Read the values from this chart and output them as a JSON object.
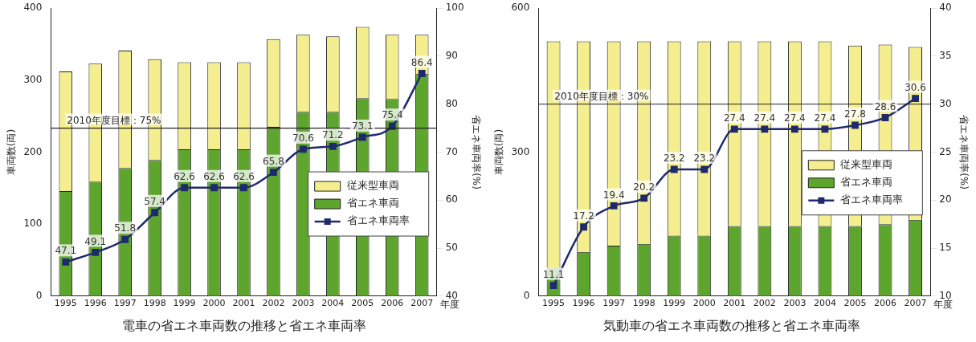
{
  "chart_data": [
    {
      "type": "bar",
      "title": "電車の省エネ車両数の推移と省エネ車両率",
      "xlabel": "年度",
      "ylabel": "車両数(両)",
      "y2label": "省エネ車両率(%)",
      "categories": [
        "1995",
        "1996",
        "1997",
        "1998",
        "1999",
        "2000",
        "2001",
        "2002",
        "2003",
        "2004",
        "2005",
        "2006",
        "2007"
      ],
      "stacked": true,
      "series": [
        {
          "name": "省エネ車両",
          "color": "#5ea52e",
          "values": [
            146,
            159,
            178,
            189,
            204,
            204,
            204,
            235,
            256,
            256,
            275,
            274,
            309
          ]
        },
        {
          "name": "従来型車両",
          "color": "#f4ee8e",
          "values": [
            166,
            164,
            163,
            140,
            121,
            121,
            121,
            122,
            107,
            105,
            99,
            89,
            54
          ]
        },
        {
          "name": "省エネ車両率",
          "type": "line",
          "axis": "y2",
          "color": "#1f2a6e",
          "values": [
            47.1,
            49.1,
            51.8,
            57.4,
            62.6,
            62.6,
            62.6,
            65.8,
            70.6,
            71.2,
            73.1,
            75.4,
            86.4
          ],
          "value_labels": [
            "47.1",
            "49.1",
            "51.8",
            "57.4",
            "62.6",
            "62.6",
            "62.6",
            "65.8",
            "70.6",
            "71.2",
            "73.1",
            "75.4",
            "86.4"
          ]
        }
      ],
      "ylim": [
        0,
        400
      ],
      "yticks": [
        0,
        100,
        200,
        300,
        400
      ],
      "y2lim": [
        40,
        100
      ],
      "y2ticks": [
        40,
        50,
        60,
        70,
        80,
        90,
        100
      ],
      "ref_lines": [
        {
          "axis": "y2",
          "value": 75,
          "label": "2010年度目標：75%",
          "color": "#222222"
        }
      ],
      "legend": "right",
      "marker": "square",
      "grid": false
    },
    {
      "type": "bar",
      "title": "気動車の省エネ車両数の推移と省エネ車両率",
      "xlabel": "年度",
      "ylabel": "車両数(両)",
      "y2label": "省エネ車両率(%)",
      "categories": [
        "1995",
        "1996",
        "1997",
        "1998",
        "1999",
        "2000",
        "2001",
        "2002",
        "2003",
        "2004",
        "2005",
        "2006",
        "2007"
      ],
      "stacked": true,
      "series": [
        {
          "name": "省エネ車両",
          "color": "#5ea52e",
          "values": [
            58,
            92,
            105,
            109,
            126,
            126,
            146,
            146,
            146,
            146,
            146,
            150,
            159
          ]
        },
        {
          "name": "従来型車両",
          "color": "#f4ee8e",
          "values": [
            473,
            439,
            426,
            422,
            405,
            405,
            385,
            385,
            385,
            385,
            376,
            374,
            360
          ]
        },
        {
          "name": "省エネ車両率",
          "type": "line",
          "axis": "y2",
          "color": "#1f2a6e",
          "values": [
            11.1,
            17.2,
            19.4,
            20.2,
            23.2,
            23.2,
            27.4,
            27.4,
            27.4,
            27.4,
            27.8,
            28.6,
            30.6
          ],
          "value_labels": [
            "11.1",
            "17.2",
            "19.4",
            "20.2",
            "23.2",
            "23.2",
            "27.4",
            "27.4",
            "27.4",
            "27.4",
            "27.8",
            "28.6",
            "30.6"
          ]
        }
      ],
      "ylim": [
        0,
        600
      ],
      "yticks": [
        0,
        300,
        600
      ],
      "y2lim": [
        10,
        40
      ],
      "y2ticks": [
        10,
        15,
        20,
        25,
        30,
        35,
        40
      ],
      "ref_lines": [
        {
          "axis": "y2",
          "value": 30,
          "label": "2010年度目標：30%",
          "color": "#222222"
        }
      ],
      "legend": "right",
      "marker": "square",
      "grid": false
    }
  ]
}
